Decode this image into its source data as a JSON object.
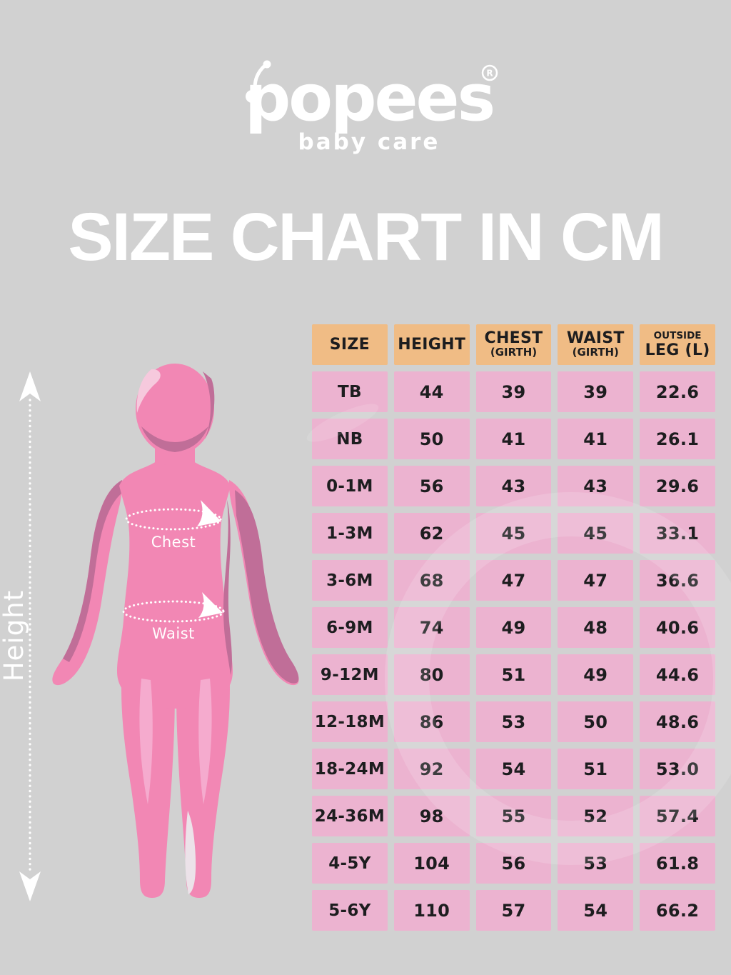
{
  "brand": {
    "name": "popees",
    "registered_mark": "R",
    "tagline": "baby care"
  },
  "title": "SIZE CHART IN CM",
  "figure": {
    "height_label": "Height",
    "chest_label": "Chest",
    "waist_label": "Waist"
  },
  "table": {
    "headers": [
      {
        "main": "SIZE"
      },
      {
        "main": "HEIGHT"
      },
      {
        "main": "CHEST",
        "sub": "(GIRTH)"
      },
      {
        "main": "WAIST",
        "sub": "(GIRTH)"
      },
      {
        "sup": "OUTSIDE",
        "main": "LEG (L)"
      }
    ],
    "rows": [
      [
        "TB",
        "44",
        "39",
        "39",
        "22.6"
      ],
      [
        "NB",
        "50",
        "41",
        "41",
        "26.1"
      ],
      [
        "0-1M",
        "56",
        "43",
        "43",
        "29.6"
      ],
      [
        "1-3M",
        "62",
        "45",
        "45",
        "33.1"
      ],
      [
        "3-6M",
        "68",
        "47",
        "47",
        "36.6"
      ],
      [
        "6-9M",
        "74",
        "49",
        "48",
        "40.6"
      ],
      [
        "9-12M",
        "80",
        "51",
        "49",
        "44.6"
      ],
      [
        "12-18M",
        "86",
        "53",
        "50",
        "48.6"
      ],
      [
        "18-24M",
        "92",
        "54",
        "51",
        "53.0"
      ],
      [
        "24-36M",
        "98",
        "55",
        "52",
        "57.4"
      ],
      [
        "4-5Y",
        "104",
        "56",
        "53",
        "61.8"
      ],
      [
        "5-6Y",
        "110",
        "57",
        "54",
        "66.2"
      ]
    ]
  },
  "colors": {
    "background": "#d1d1d1",
    "header_cell": "#f0bc85",
    "data_cell": "#ecb3d0",
    "cell_text": "#1d1d1f",
    "figure_pink": "#f287b4",
    "figure_shadow": "#c06e98",
    "figure_highlight": "#f5abce",
    "white": "#ffffff"
  },
  "chart_data": {
    "type": "table",
    "title": "SIZE CHART IN CM",
    "unit": "cm",
    "columns": [
      "SIZE",
      "HEIGHT",
      "CHEST (GIRTH)",
      "WAIST (GIRTH)",
      "OUTSIDE LEG (L)"
    ],
    "rows": [
      [
        "TB",
        44,
        39,
        39,
        22.6
      ],
      [
        "NB",
        50,
        41,
        41,
        26.1
      ],
      [
        "0-1M",
        56,
        43,
        43,
        29.6
      ],
      [
        "1-3M",
        62,
        45,
        45,
        33.1
      ],
      [
        "3-6M",
        68,
        47,
        47,
        36.6
      ],
      [
        "6-9M",
        74,
        49,
        48,
        40.6
      ],
      [
        "9-12M",
        80,
        51,
        49,
        44.6
      ],
      [
        "12-18M",
        86,
        53,
        50,
        48.6
      ],
      [
        "18-24M",
        92,
        54,
        51,
        53.0
      ],
      [
        "24-36M",
        98,
        55,
        52,
        57.4
      ],
      [
        "4-5Y",
        104,
        56,
        53,
        61.8
      ],
      [
        "5-6Y",
        110,
        57,
        54,
        66.2
      ]
    ]
  }
}
